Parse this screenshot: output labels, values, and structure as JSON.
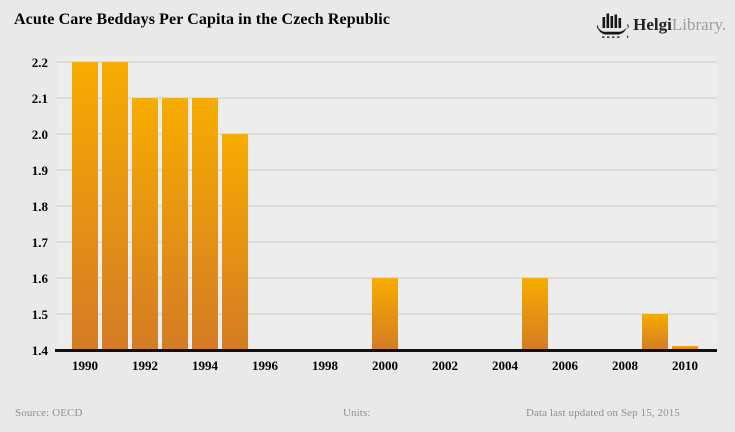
{
  "header": {
    "title": "Acute Care Beddays Per Capita in the Czech Republic",
    "logo": {
      "icon": "viking-ship-bar-chart-icon",
      "brand_bold": "Helgi",
      "brand_light": "Library."
    }
  },
  "footer": {
    "source": "Source: OECD",
    "units": "Units:",
    "updated": "Data last updated on Sep 15, 2015"
  },
  "chart_data": {
    "type": "bar",
    "title": "Acute Care Beddays Per Capita in the Czech Republic",
    "xlabel": "",
    "ylabel": "",
    "ylim": [
      1.4,
      2.2
    ],
    "x_range": [
      1990,
      2010
    ],
    "grid": "horizontal",
    "legend": "none",
    "y_ticks": [
      "2.2",
      "2.1",
      "2.0",
      "1.9",
      "1.8",
      "1.7",
      "1.6",
      "1.5",
      "1.4"
    ],
    "x_ticks": [
      1990,
      1992,
      1994,
      1996,
      1998,
      2000,
      2002,
      2004,
      2006,
      2008,
      2010
    ],
    "points": [
      {
        "year": 1990,
        "value": 2.2
      },
      {
        "year": 1991,
        "value": 2.2
      },
      {
        "year": 1992,
        "value": 2.1
      },
      {
        "year": 1993,
        "value": 2.1
      },
      {
        "year": 1994,
        "value": 2.1
      },
      {
        "year": 1995,
        "value": 2.0
      },
      {
        "year": 2000,
        "value": 1.6
      },
      {
        "year": 2005,
        "value": 1.6
      },
      {
        "year": 2009,
        "value": 1.5
      },
      {
        "year": 2010,
        "value": 1.41
      }
    ],
    "bar_color_top": "#f7ac00",
    "bar_color_bottom": "#d37c25"
  },
  "colors": {
    "background": "#e9e9e9",
    "plot_background": "#ededed",
    "gridline": "#dcdcdc",
    "axis_line": "#111111",
    "title_text": "#000000",
    "footer_text": "#8f8f8f",
    "logo_dark": "#222222",
    "logo_light": "#9d9d9d"
  }
}
